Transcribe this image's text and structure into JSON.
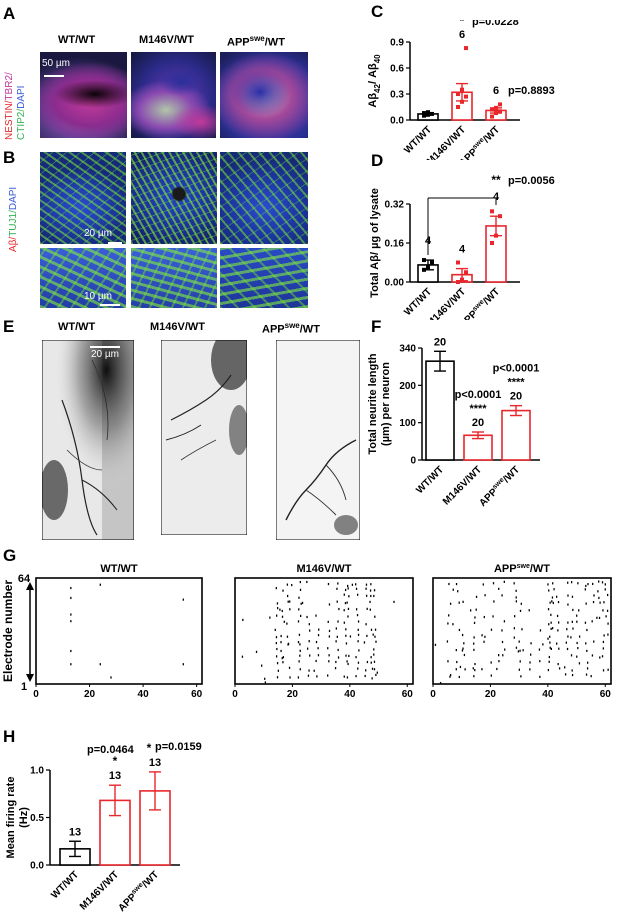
{
  "panel_letters": {
    "A": "A",
    "B": "B",
    "C": "C",
    "D": "D",
    "E": "E",
    "F": "F",
    "G": "G",
    "H": "H"
  },
  "genotypes": {
    "wt": "WT/WT",
    "m146v": "M146V/WT",
    "app_prefix": "APP",
    "app_sup": "swe",
    "app_suffix": "/WT"
  },
  "panelA": {
    "stain_nestin": "NESTIN/",
    "stain_tbr2": "TBR2/",
    "stain_ctip2": "CTIP2/",
    "stain_dapi": "DAPI",
    "scale_bar": "50 µm"
  },
  "panelB": {
    "stain_abeta": "Aβ/",
    "stain_tuj1": "TUJ1/",
    "stain_dapi": "DAPI",
    "scale_bar_top": "20 µm",
    "scale_bar_bottom": "10 µm"
  },
  "panelE": {
    "scale_bar": "20 µm"
  },
  "colors": {
    "black": "#000000",
    "red": "#e8262b",
    "nestin": "#e8262b",
    "tbr2": "#c0399e",
    "ctip2": "#2fb351",
    "dapi": "#3559d6",
    "green": "#3fbf3a"
  },
  "chart_data": [
    {
      "id": "C",
      "type": "bar",
      "ylabel_html": "Aβ<sub>42</sub>/ Aβ<sub>40</sub>",
      "ylim": [
        0,
        0.9
      ],
      "yticks": [
        "0.0",
        "0.3",
        "0.6",
        "0.9"
      ],
      "categories": [
        "WT/WT",
        "M146V/WT",
        "APPswe/WT"
      ],
      "values": [
        0.07,
        0.32,
        0.11
      ],
      "errors": [
        0.01,
        0.1,
        0.03
      ],
      "points": [
        [
          0.05,
          0.06,
          0.07,
          0.08,
          0.09
        ],
        [
          0.15,
          0.21,
          0.27,
          0.3,
          0.35,
          0.83
        ],
        [
          0.04,
          0.08,
          0.1,
          0.12,
          0.14,
          0.18
        ]
      ],
      "n": [
        "",
        "6",
        "6"
      ],
      "stars": [
        "",
        "*",
        ""
      ],
      "pvalues": [
        "",
        "p=0.0228",
        "p=0.8893"
      ]
    },
    {
      "id": "D",
      "type": "bar",
      "ylabel_html": "Total Aβ/ µg of lysate",
      "ylim": [
        0,
        0.32
      ],
      "yticks": [
        "0.00",
        "0.16",
        "0.32"
      ],
      "categories": [
        "WT/WT",
        "M146V/WT",
        "APPswe/WT"
      ],
      "values": [
        0.07,
        0.03,
        0.23
      ],
      "errors": [
        0.02,
        0.025,
        0.04
      ],
      "points": [
        [
          0.05,
          0.06,
          0.08,
          0.09
        ],
        [
          0.0,
          0.01,
          0.04,
          0.08
        ],
        [
          0.16,
          0.19,
          0.27,
          0.29
        ]
      ],
      "n": [
        "4",
        "4",
        "4"
      ],
      "comparison_stars": "**",
      "comparison_p": "p=0.0056"
    },
    {
      "id": "F",
      "type": "bar",
      "ylabel_html": "Total neurite length (µm) per neuron",
      "ylim": [
        0,
        340
      ],
      "yticks": [
        "0",
        "100",
        "200",
        "340"
      ],
      "categories": [
        "WT/WT",
        "M146V/WT",
        "APPswe/WT"
      ],
      "values": [
        300,
        75,
        150
      ],
      "errors": [
        30,
        10,
        15
      ],
      "n": [
        "20",
        "20",
        "20"
      ],
      "stars": [
        "",
        "****",
        "****"
      ],
      "pvalues": [
        "",
        "p<0.0001",
        "p<0.0001"
      ]
    },
    {
      "id": "G",
      "type": "scatter",
      "ylabel": "Electrode number",
      "ytop": "64",
      "ybottom": "1",
      "xticks": [
        "0",
        "20",
        "40",
        "60"
      ],
      "xlim": [
        0,
        62
      ],
      "rasters": [
        {
          "title": "WT/WT",
          "spikes": [
            [
              13,
              58
            ],
            [
              13,
              52
            ],
            [
              13,
              42
            ],
            [
              13,
              38
            ],
            [
              13,
              20
            ],
            [
              13,
              12
            ],
            [
              24,
              60
            ],
            [
              24,
              12
            ],
            [
              28,
              4
            ],
            [
              55,
              51
            ],
            [
              55,
              12
            ]
          ]
        },
        {
          "title": "M146V/WT",
          "spikes": "dense"
        },
        {
          "title": "APPswe/WT",
          "spikes": "dense"
        }
      ]
    },
    {
      "id": "H",
      "type": "bar",
      "ylabel": "Mean firing rate (Hz)",
      "ylim": [
        0,
        1.0
      ],
      "yticks": [
        "0.0",
        "0.5",
        "1.0"
      ],
      "categories": [
        "WT/WT",
        "M146V/WT",
        "APPswe/WT"
      ],
      "values": [
        0.17,
        0.68,
        0.78
      ],
      "errors": [
        0.08,
        0.16,
        0.2
      ],
      "n": [
        "13",
        "13",
        "13"
      ],
      "stars": [
        "",
        "*",
        "*"
      ],
      "pvalues": [
        "",
        "p=0.0464",
        "p=0.0159"
      ]
    }
  ]
}
